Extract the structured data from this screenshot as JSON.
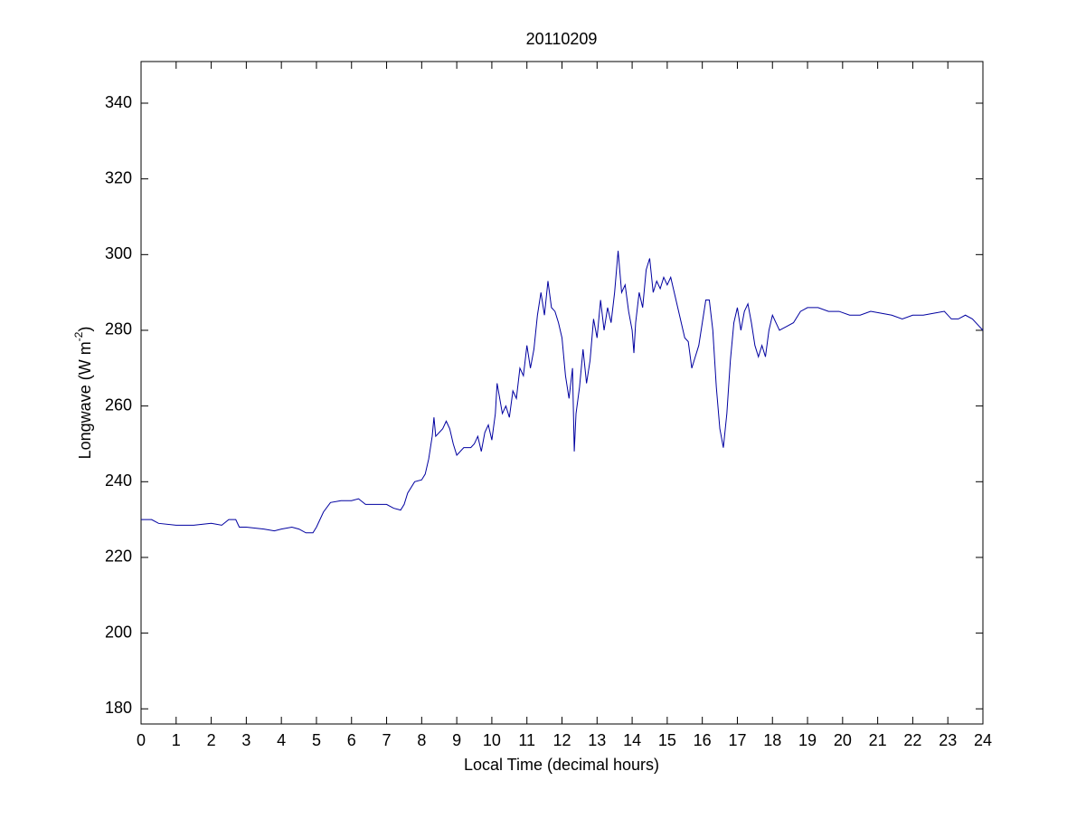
{
  "chart_data": {
    "type": "line",
    "title": "20110209",
    "xlabel": "Local Time (decimal hours)",
    "ylabel": "Longwave (W m",
    "ylabel_superscript": "-2",
    "ylabel_end": ")",
    "xlim": [
      0,
      24
    ],
    "ylim": [
      176,
      351
    ],
    "xticks": [
      0,
      1,
      2,
      3,
      4,
      5,
      6,
      7,
      8,
      9,
      10,
      11,
      12,
      13,
      14,
      15,
      16,
      17,
      18,
      19,
      20,
      21,
      22,
      23,
      24
    ],
    "yticks": [
      180,
      200,
      220,
      240,
      260,
      280,
      300,
      320,
      340
    ],
    "grid": false,
    "series": [
      {
        "color": "#0000a0",
        "x": [
          0,
          0.3,
          0.5,
          1,
          1.5,
          2,
          2.3,
          2.5,
          2.7,
          2.8,
          3,
          3.5,
          3.8,
          4,
          4.3,
          4.5,
          4.7,
          4.9,
          5.0,
          5.2,
          5.4,
          5.7,
          6,
          6.2,
          6.4,
          6.7,
          7,
          7.2,
          7.4,
          7.5,
          7.6,
          7.8,
          8,
          8.1,
          8.2,
          8.3,
          8.35,
          8.4,
          8.6,
          8.7,
          8.8,
          8.9,
          9,
          9.2,
          9.4,
          9.5,
          9.6,
          9.7,
          9.8,
          9.9,
          10,
          10.1,
          10.15,
          10.3,
          10.4,
          10.5,
          10.6,
          10.7,
          10.8,
          10.9,
          11,
          11.1,
          11.2,
          11.3,
          11.4,
          11.5,
          11.6,
          11.7,
          11.8,
          11.9,
          12,
          12.1,
          12.2,
          12.3,
          12.35,
          12.4,
          12.5,
          12.6,
          12.7,
          12.8,
          12.9,
          13,
          13.1,
          13.2,
          13.3,
          13.4,
          13.5,
          13.6,
          13.7,
          13.8,
          13.9,
          14,
          14.05,
          14.1,
          14.2,
          14.3,
          14.4,
          14.5,
          14.6,
          14.7,
          14.8,
          14.9,
          15,
          15.1,
          15.2,
          15.3,
          15.4,
          15.5,
          15.6,
          15.7,
          15.8,
          15.9,
          16,
          16.1,
          16.2,
          16.3,
          16.4,
          16.5,
          16.6,
          16.7,
          16.8,
          16.9,
          17,
          17.1,
          17.2,
          17.3,
          17.4,
          17.5,
          17.6,
          17.7,
          17.8,
          17.9,
          18,
          18.2,
          18.4,
          18.6,
          18.8,
          19,
          19.3,
          19.6,
          19.9,
          20.2,
          20.5,
          20.8,
          21.1,
          21.4,
          21.7,
          22,
          22.3,
          22.6,
          22.9,
          23.1,
          23.3,
          23.5,
          23.7,
          23.9,
          24
        ],
        "values": [
          230,
          230,
          229,
          228.5,
          228.5,
          229,
          228.5,
          230,
          230,
          228,
          228,
          227.5,
          227,
          227.5,
          228,
          227.5,
          226.5,
          226.5,
          228,
          232,
          234.5,
          235,
          235,
          235.5,
          234,
          234,
          234,
          233,
          232.5,
          234,
          237,
          240,
          240.5,
          242,
          246,
          252,
          257,
          252,
          254,
          256,
          254,
          250,
          247,
          249,
          249,
          250,
          252,
          248,
          253,
          255,
          251,
          258,
          266,
          258,
          260,
          257,
          264,
          262,
          270,
          268,
          276,
          270,
          275,
          284,
          290,
          284,
          293,
          286,
          285,
          282,
          278,
          268,
          262,
          270,
          248,
          258,
          265,
          275,
          266,
          272,
          283,
          278,
          288,
          280,
          286,
          282,
          290,
          301,
          290,
          292,
          285,
          280,
          274,
          282,
          290,
          286,
          296,
          299,
          290,
          293,
          291,
          294,
          292,
          294,
          290,
          286,
          282,
          278,
          277,
          270,
          273,
          276,
          282,
          288,
          288,
          280,
          265,
          254,
          249,
          258,
          272,
          282,
          286,
          280,
          285,
          287,
          282,
          276,
          273,
          276,
          273,
          280,
          284,
          280,
          281,
          282,
          285,
          286,
          286,
          285,
          285,
          284,
          284,
          285,
          284.5,
          284,
          283,
          284,
          284,
          284.5,
          285,
          283,
          283,
          284,
          283,
          281,
          280
        ]
      }
    ]
  }
}
